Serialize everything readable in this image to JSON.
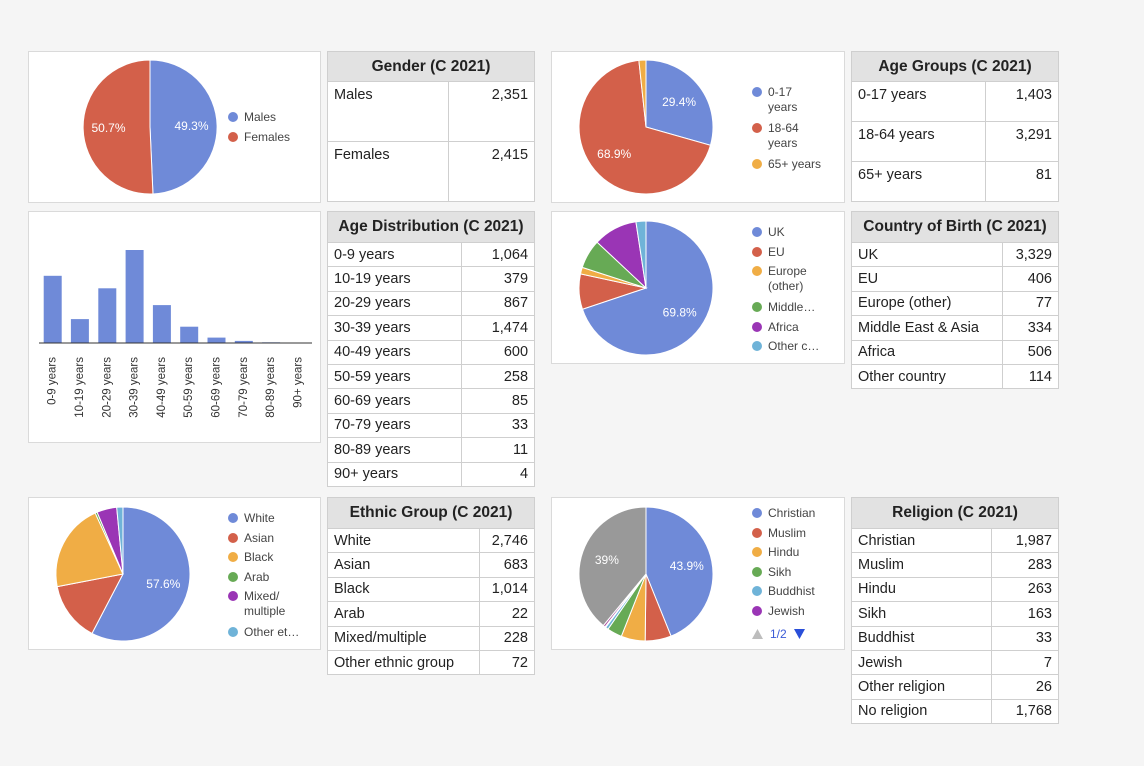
{
  "chart_data": [
    {
      "type": "pie",
      "title": "",
      "categories": [
        "Males",
        "Females"
      ],
      "values": [
        49.3,
        50.7
      ],
      "labels": [
        "49.3%",
        "50.7%"
      ],
      "colors": [
        "#6f8ad8",
        "#d3604a"
      ],
      "legend": "right"
    },
    {
      "type": "pie",
      "title": "",
      "categories": [
        "0-17 years",
        "18-64 years",
        "65+ years"
      ],
      "values": [
        29.4,
        68.9,
        1.7
      ],
      "labels": [
        "29.4%",
        "68.9%",
        ""
      ],
      "colors": [
        "#6f8ad8",
        "#d3604a",
        "#f0ad45"
      ],
      "legend": "right"
    },
    {
      "type": "bar",
      "title": "",
      "categories": [
        "0-9 years",
        "10-19 years",
        "20-29 years",
        "30-39 years",
        "40-49 years",
        "50-59 years",
        "60-69 years",
        "70-79 years",
        "80-89 years",
        "90+ years"
      ],
      "values": [
        1064,
        379,
        867,
        1474,
        600,
        258,
        85,
        33,
        11,
        4
      ],
      "color": "#6f8ad8",
      "ylim": [
        0,
        1600
      ],
      "grid": false,
      "legend": "none"
    },
    {
      "type": "pie",
      "title": "",
      "categories": [
        "UK",
        "EU",
        "Europe (other)",
        "Middle…",
        "Africa",
        "Other c…"
      ],
      "values": [
        69.8,
        8.5,
        1.6,
        7.0,
        10.6,
        2.4
      ],
      "labels": [
        "69.8%",
        "",
        "",
        "",
        "",
        ""
      ],
      "colors": [
        "#6f8ad8",
        "#d3604a",
        "#f0ad45",
        "#67aa55",
        "#9a35b5",
        "#6fb3d8"
      ],
      "legend": "right"
    },
    {
      "type": "pie",
      "title": "",
      "categories": [
        "White",
        "Asian",
        "Black",
        "Arab",
        "Mixed/ multiple",
        "Other et…"
      ],
      "values": [
        57.6,
        14.3,
        21.2,
        0.5,
        4.8,
        1.5
      ],
      "labels": [
        "57.6%",
        "",
        "",
        "",
        "",
        ""
      ],
      "colors": [
        "#6f8ad8",
        "#d3604a",
        "#f0ad45",
        "#67aa55",
        "#9a35b5",
        "#6fb3d8"
      ],
      "legend": "right"
    },
    {
      "type": "pie",
      "title": "",
      "categories": [
        "Christian",
        "Muslim",
        "Hindu",
        "Sikh",
        "Buddhist",
        "Jewish",
        "Other religion",
        "No religion"
      ],
      "values": [
        43.9,
        6.3,
        5.8,
        3.6,
        0.7,
        0.2,
        0.5,
        39.0
      ],
      "labels": [
        "43.9%",
        "",
        "",
        "",
        "",
        "",
        "",
        "39%"
      ],
      "colors": [
        "#6f8ad8",
        "#d3604a",
        "#f0ad45",
        "#67aa55",
        "#6fb3d8",
        "#9a35b5",
        "#a7489a",
        "#999999"
      ],
      "legend_visible": 6,
      "legend": "right"
    }
  ],
  "tables": {
    "gender": {
      "title": "Gender (C 2021)",
      "rows": [
        [
          "Males",
          "2,351"
        ],
        [
          "Females",
          "2,415"
        ]
      ]
    },
    "age_groups": {
      "title": "Age Groups (C 2021)",
      "rows": [
        [
          "0-17 years",
          "1,403"
        ],
        [
          "18-64 years",
          "3,291"
        ],
        [
          "65+ years",
          "81"
        ]
      ]
    },
    "age_distribution": {
      "title": "Age Distribution (C 2021)",
      "rows": [
        [
          "0-9 years",
          "1,064"
        ],
        [
          "10-19 years",
          "379"
        ],
        [
          "20-29 years",
          "867"
        ],
        [
          "30-39 years",
          "1,474"
        ],
        [
          "40-49 years",
          "600"
        ],
        [
          "50-59 years",
          "258"
        ],
        [
          "60-69 years",
          "85"
        ],
        [
          "70-79 years",
          "33"
        ],
        [
          "80-89 years",
          "11"
        ],
        [
          "90+ years",
          "4"
        ]
      ]
    },
    "country_of_birth": {
      "title": "Country of Birth (C 2021)",
      "rows": [
        [
          "UK",
          "3,329"
        ],
        [
          "EU",
          "406"
        ],
        [
          "Europe (other)",
          "77"
        ],
        [
          "Middle East & Asia",
          "334"
        ],
        [
          "Africa",
          "506"
        ],
        [
          "Other country",
          "114"
        ]
      ]
    },
    "ethnic_group": {
      "title": "Ethnic Group (C 2021)",
      "rows": [
        [
          "White",
          "2,746"
        ],
        [
          "Asian",
          "683"
        ],
        [
          "Black",
          "1,014"
        ],
        [
          "Arab",
          "22"
        ],
        [
          "Mixed/multiple",
          "228"
        ],
        [
          "Other ethnic group",
          "72"
        ]
      ]
    },
    "religion": {
      "title": "Religion (C 2021)",
      "rows": [
        [
          "Christian",
          "1,987"
        ],
        [
          "Muslim",
          "283"
        ],
        [
          "Hindu",
          "263"
        ],
        [
          "Sikh",
          "163"
        ],
        [
          "Buddhist",
          "33"
        ],
        [
          "Jewish",
          "7"
        ],
        [
          "Other religion",
          "26"
        ],
        [
          "No religion",
          "1,768"
        ]
      ]
    }
  },
  "religion_legend_pager": {
    "label": "1/2"
  }
}
